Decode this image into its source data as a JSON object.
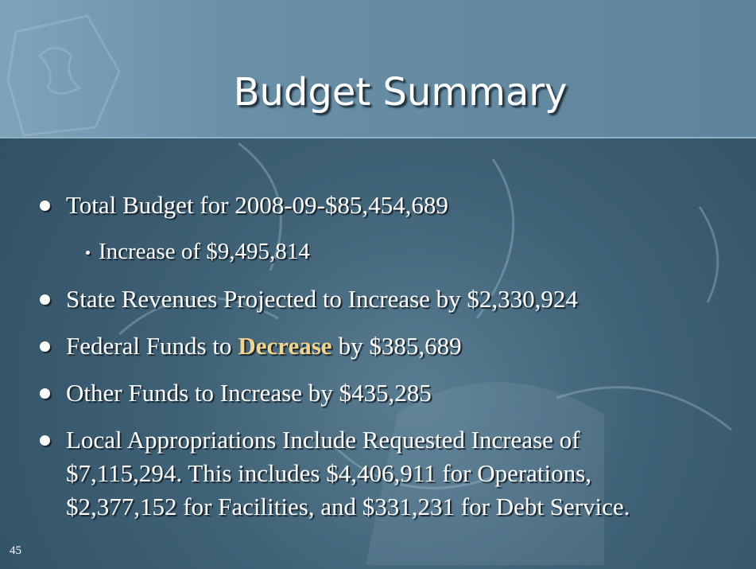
{
  "title": "Budget Summary",
  "bullets": [
    {
      "text": "Total Budget for 2008-09-$85,454,689",
      "sub": [
        "Increase of $9,495,814"
      ]
    },
    {
      "text": "State Revenues Projected to Increase by $2,330,924"
    },
    {
      "parts": [
        "Federal Funds to",
        "Decrease",
        "by $385,689"
      ]
    },
    {
      "text": "Other Funds to Increase by $435,285"
    },
    {
      "text": "Local Appropriations Include Requested Increase of $7,115,294. This includes $4,406,911 for Operations, $2,377,152 for Facilities, and $331,231 for Debt Service."
    }
  ],
  "slide_number": "45"
}
